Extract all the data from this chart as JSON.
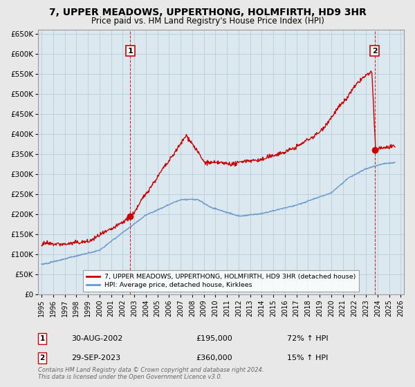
{
  "title": "7, UPPER MEADOWS, UPPERTHONG, HOLMFIRTH, HD9 3HR",
  "subtitle": "Price paid vs. HM Land Registry's House Price Index (HPI)",
  "title_fontsize": 10,
  "subtitle_fontsize": 8.5,
  "yticks": [
    0,
    50000,
    100000,
    150000,
    200000,
    250000,
    300000,
    350000,
    400000,
    450000,
    500000,
    550000,
    600000,
    650000
  ],
  "ylim": [
    0,
    660000
  ],
  "xlim_start": 1994.7,
  "xlim_end": 2026.3,
  "bg_color": "#e8e8e8",
  "plot_bg_color": "#dce8f0",
  "grid_color": "#b8ccd8",
  "red_color": "#cc0000",
  "blue_color": "#6699cc",
  "marker1_year": 2002.66,
  "marker1_value": 195000,
  "marker1_label": "1",
  "marker2_year": 2023.75,
  "marker2_value": 360000,
  "marker2_label": "2",
  "annotation1_date": "30-AUG-2002",
  "annotation1_price": "£195,000",
  "annotation1_hpi": "72% ↑ HPI",
  "annotation2_date": "29-SEP-2023",
  "annotation2_price": "£360,000",
  "annotation2_hpi": "15% ↑ HPI",
  "legend_label1": "7, UPPER MEADOWS, UPPERTHONG, HOLMFIRTH, HD9 3HR (detached house)",
  "legend_label2": "HPI: Average price, detached house, Kirklees",
  "footnote": "Contains HM Land Registry data © Crown copyright and database right 2024.\nThis data is licensed under the Open Government Licence v3.0.",
  "xticks": [
    1995,
    1996,
    1997,
    1998,
    1999,
    2000,
    2001,
    2002,
    2003,
    2004,
    2005,
    2006,
    2007,
    2008,
    2009,
    2010,
    2011,
    2012,
    2013,
    2014,
    2015,
    2016,
    2017,
    2018,
    2019,
    2020,
    2021,
    2022,
    2023,
    2024,
    2025,
    2026
  ]
}
